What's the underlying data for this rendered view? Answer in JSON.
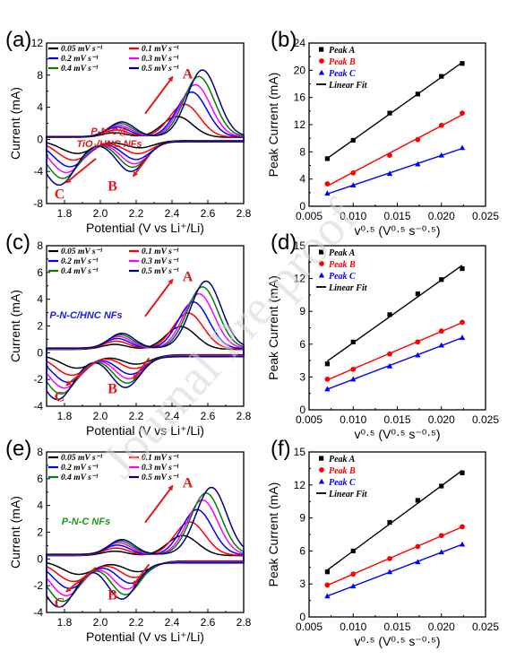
{
  "colors": {
    "scan": [
      "#000000",
      "#ff0000",
      "#0000ff",
      "#ff00ff",
      "#008000",
      "#000080"
    ],
    "peak": [
      "#000000",
      "#ff0000",
      "#0000ff"
    ],
    "arrow": "#e31a1c",
    "watermark": "#d3d3d3"
  },
  "watermark": "Journal Pre-proof",
  "cv_legend": [
    "0.05 mV s⁻¹",
    "0.1 mV s⁻¹",
    "0.2 mV s⁻¹",
    "0.3 mV s⁻¹",
    "0.4 mV s⁻¹",
    "0.5 mV s⁻¹"
  ],
  "peak_legend": [
    "Peak A",
    "Peak B",
    "Peak C",
    "Linear Fit"
  ],
  "cv_xlabel": "Potential (V vs Li⁺/Li)",
  "cv_ylabel": "Current (mA)",
  "fit_xlabel": "v⁰·⁵ (V⁰·⁵ s⁻⁰·⁵)",
  "fit_ylabel": "Peak Current (mA)",
  "chart_data": [
    {
      "panel": "(a)",
      "type": "line",
      "sample_label": [
        "P-N-C@",
        "TiO₂/HNC NFs"
      ],
      "sample_color": "#e31a1c",
      "xlabel": "Potential (V vs Li⁺/Li)",
      "ylabel": "Current (mA)",
      "xlim": [
        1.7,
        2.8
      ],
      "ylim": [
        -8,
        12
      ],
      "xticks": [
        "1.8",
        "2.0",
        "2.2",
        "2.4",
        "2.6",
        "2.8"
      ],
      "yticks": [
        "-8",
        "-4",
        "0",
        "4",
        "8",
        "12"
      ],
      "annotations": [
        "A",
        "B",
        "C"
      ],
      "scan_rates": [
        0.05,
        0.1,
        0.2,
        0.3,
        0.4,
        0.5
      ],
      "anodic_peak": {
        "potential": [
          2.43,
          2.47,
          2.51,
          2.53,
          2.55,
          2.57
        ],
        "current": [
          2.6,
          4.1,
          5.6,
          6.5,
          7.5,
          8.3
        ]
      },
      "cathodic_peak_B": {
        "potential": [
          2.22,
          2.21,
          2.2,
          2.19,
          2.18,
          2.17
        ],
        "current": [
          -0.9,
          -1.6,
          -2.3,
          -2.8,
          -3.2,
          -3.7
        ]
      },
      "cathodic_peak_C": {
        "potential": [
          1.87,
          1.85,
          1.83,
          1.81,
          1.79,
          1.77
        ],
        "current": [
          -1.6,
          -2.4,
          -3.2,
          -3.9,
          -4.6,
          -5.4
        ]
      }
    },
    {
      "panel": "(b)",
      "type": "scatter",
      "xlabel": "v⁰·⁵ (V⁰·⁵ s⁻⁰·⁵)",
      "ylabel": "Peak Current (mA)",
      "xlim": [
        0.005,
        0.025
      ],
      "ylim": [
        0,
        24
      ],
      "xticks": [
        "0.005",
        "0.010",
        "0.015",
        "0.020",
        "0.025"
      ],
      "yticks": [
        "0",
        "4",
        "8",
        "12",
        "16",
        "20",
        "24"
      ],
      "x": [
        0.00707,
        0.01,
        0.01414,
        0.01732,
        0.02,
        0.02236
      ],
      "series": [
        {
          "name": "Peak A",
          "values": [
            7.0,
            9.7,
            13.7,
            16.5,
            19.1,
            21.0
          ]
        },
        {
          "name": "Peak B",
          "values": [
            3.3,
            4.9,
            7.5,
            9.8,
            11.9,
            13.7
          ]
        },
        {
          "name": "Peak C",
          "values": [
            1.9,
            3.1,
            4.8,
            6.2,
            7.5,
            8.6
          ]
        }
      ]
    },
    {
      "panel": "(c)",
      "type": "line",
      "sample_label": [
        "P-N-C/HNC NFs"
      ],
      "sample_color": "#1f1fd6",
      "xlabel": "Potential (V vs Li⁺/Li)",
      "ylabel": "Current (mA)",
      "xlim": [
        1.7,
        2.8
      ],
      "ylim": [
        -4,
        8
      ],
      "xticks": [
        "1.8",
        "2.0",
        "2.2",
        "2.4",
        "2.6",
        "2.8"
      ],
      "yticks": [
        "-4",
        "-2",
        "0",
        "2",
        "4",
        "6",
        "8"
      ],
      "annotations": [
        "A",
        "B",
        "C"
      ],
      "scan_rates": [
        0.05,
        0.1,
        0.2,
        0.3,
        0.4,
        0.5
      ],
      "anodic_peak": {
        "potential": [
          2.45,
          2.49,
          2.52,
          2.55,
          2.57,
          2.59
        ],
        "current": [
          1.7,
          2.7,
          3.5,
          4.1,
          4.6,
          5.0
        ]
      },
      "cathodic_peak_B": {
        "potential": [
          2.2,
          2.19,
          2.17,
          2.16,
          2.15,
          2.14
        ],
        "current": [
          -0.7,
          -1.0,
          -1.4,
          -1.7,
          -2.0,
          -2.3
        ]
      },
      "cathodic_peak_C": {
        "potential": [
          1.87,
          1.84,
          1.82,
          1.8,
          1.78,
          1.76
        ],
        "current": [
          -1.0,
          -1.5,
          -2.0,
          -2.4,
          -2.8,
          -3.2
        ]
      }
    },
    {
      "panel": "(d)",
      "type": "scatter",
      "xlabel": "v⁰·⁵ (V⁰·⁵ s⁻⁰·⁵)",
      "ylabel": "Peak Current (mA)",
      "xlim": [
        0.005,
        0.025
      ],
      "ylim": [
        0,
        15
      ],
      "xticks": [
        "0.005",
        "0.010",
        "0.015",
        "0.020",
        "0.025"
      ],
      "yticks": [
        "0",
        "3",
        "6",
        "9",
        "12",
        "15"
      ],
      "x": [
        0.00707,
        0.01,
        0.01414,
        0.01732,
        0.02,
        0.02236
      ],
      "series": [
        {
          "name": "Peak A",
          "values": [
            4.2,
            6.2,
            8.7,
            10.6,
            11.9,
            12.9
          ]
        },
        {
          "name": "Peak B",
          "values": [
            2.8,
            3.7,
            5.1,
            6.2,
            7.2,
            8.0
          ]
        },
        {
          "name": "Peak C",
          "values": [
            1.9,
            2.8,
            4.0,
            5.0,
            5.9,
            6.6
          ]
        }
      ]
    },
    {
      "panel": "(e)",
      "type": "line",
      "sample_label": [
        "P-N-C NFs"
      ],
      "sample_color": "#1a9a1a",
      "xlabel": "Potential (V vs Li⁺/Li)",
      "ylabel": "Current (mA)",
      "xlim": [
        1.7,
        2.8
      ],
      "ylim": [
        -4,
        8
      ],
      "xticks": [
        "1.8",
        "2.0",
        "2.2",
        "2.4",
        "2.6",
        "2.8"
      ],
      "yticks": [
        "-4",
        "-2",
        "0",
        "2",
        "4",
        "6",
        "8"
      ],
      "annotations": [
        "A",
        "B",
        "C"
      ],
      "scan_rates": [
        0.05,
        0.1,
        0.2,
        0.3,
        0.4,
        0.5
      ],
      "anodic_peak": {
        "potential": [
          2.46,
          2.5,
          2.54,
          2.57,
          2.59,
          2.62
        ],
        "current": [
          1.5,
          2.5,
          3.4,
          4.1,
          4.6,
          5.0
        ]
      },
      "cathodic_peak_B": {
        "potential": [
          2.21,
          2.19,
          2.17,
          2.15,
          2.14,
          2.12
        ],
        "current": [
          -0.8,
          -1.2,
          -1.6,
          -2.0,
          -2.4,
          -2.7
        ]
      },
      "cathodic_peak_C": {
        "potential": [
          1.88,
          1.85,
          1.83,
          1.81,
          1.79,
          1.77
        ],
        "current": [
          -1.0,
          -1.5,
          -2.0,
          -2.5,
          -2.9,
          -3.3
        ]
      }
    },
    {
      "panel": "(f)",
      "type": "scatter",
      "xlabel": "v⁰·⁵ (V⁰·⁵ s⁻⁰·⁵)",
      "ylabel": "Peak Current (mA)",
      "xlim": [
        0.005,
        0.025
      ],
      "ylim": [
        0,
        15
      ],
      "xticks": [
        "0.005",
        "0.010",
        "0.015",
        "0.020",
        "0.025"
      ],
      "yticks": [
        "0",
        "3",
        "6",
        "9",
        "12",
        "15"
      ],
      "x": [
        0.00707,
        0.01,
        0.01414,
        0.01732,
        0.02,
        0.02236
      ],
      "series": [
        {
          "name": "Peak A",
          "values": [
            4.1,
            6.0,
            8.6,
            10.6,
            11.9,
            13.1
          ]
        },
        {
          "name": "Peak B",
          "values": [
            2.9,
            3.9,
            5.3,
            6.4,
            7.4,
            8.2
          ]
        },
        {
          "name": "Peak C",
          "values": [
            1.9,
            2.8,
            4.1,
            5.0,
            5.9,
            6.6
          ]
        }
      ]
    }
  ]
}
